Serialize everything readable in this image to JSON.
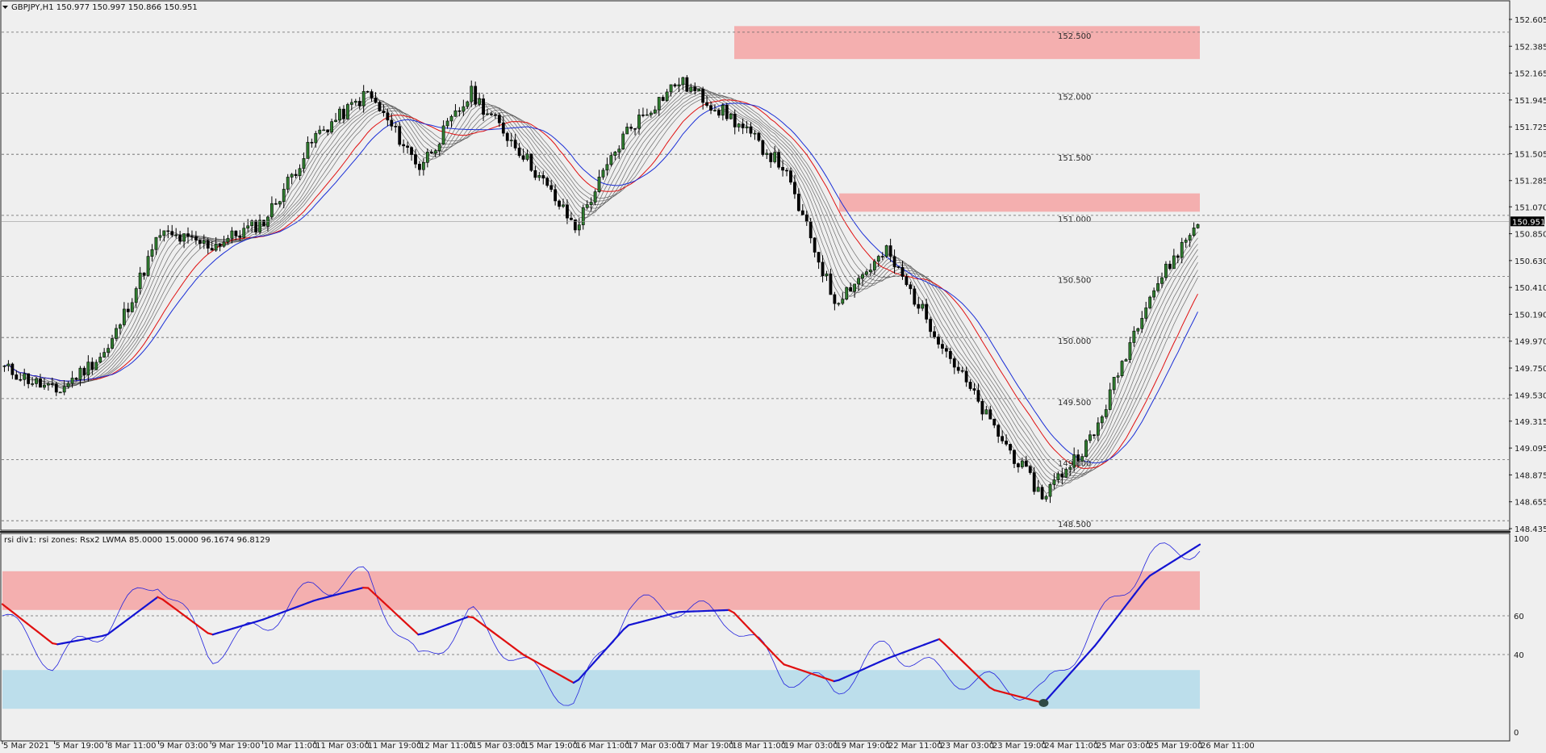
{
  "header": {
    "title": "GBPJPY,H1  150.977 150.997 150.866 150.951",
    "menu_icon": "triangle-down-icon"
  },
  "price_panel": {
    "current_price": "150.951",
    "price_axis_labels": [
      "152.605",
      "152.385",
      "152.165",
      "151.945",
      "151.725",
      "151.505",
      "151.285",
      "151.070",
      "150.850",
      "150.630",
      "150.410",
      "150.190",
      "149.970",
      "149.750",
      "149.530",
      "149.315",
      "149.095",
      "148.875",
      "148.655",
      "148.435"
    ],
    "level_labels": [
      "152.500",
      "152.000",
      "151.500",
      "151.000",
      "150.500",
      "150.000",
      "149.500",
      "149.000",
      "148.500"
    ],
    "zone_colors": {
      "supply": "#f4afaf"
    }
  },
  "indicator_panel": {
    "title": "rsi div1: rsi zones: Rsx2 LWMA 85.0000 15.0000 96.1674 96.8129",
    "axis_labels": [
      "100",
      "60",
      "40",
      "0"
    ],
    "zone_colors": {
      "overbought": "#f4afaf",
      "oversold": "#bcdeeb"
    }
  },
  "time_axis": {
    "labels": [
      "5 Mar 2021",
      "5 Mar 19:00",
      "8 Mar 11:00",
      "9 Mar 03:00",
      "9 Mar 19:00",
      "10 Mar 11:00",
      "11 Mar 03:00",
      "11 Mar 19:00",
      "12 Mar 11:00",
      "15 Mar 03:00",
      "15 Mar 19:00",
      "16 Mar 11:00",
      "17 Mar 03:00",
      "17 Mar 19:00",
      "18 Mar 11:00",
      "19 Mar 03:00",
      "19 Mar 19:00",
      "22 Mar 11:00",
      "23 Mar 03:00",
      "23 Mar 19:00",
      "24 Mar 11:00",
      "25 Mar 03:00",
      "25 Mar 19:00",
      "26 Mar 11:00"
    ]
  },
  "chart_data": [
    {
      "type": "candlestick",
      "symbol": "GBPJPY",
      "timeframe": "H1",
      "ohlc_header": {
        "open": 150.977,
        "high": 150.997,
        "low": 150.866,
        "close": 150.951
      },
      "y_range": [
        148.435,
        152.605
      ],
      "horizontal_levels": [
        152.5,
        152.0,
        151.5,
        151.0,
        150.5,
        150.0,
        149.5,
        149.0,
        148.5
      ],
      "zones": [
        {
          "kind": "supply",
          "from": 152.28,
          "to": 152.55
        },
        {
          "kind": "supply",
          "from": 151.03,
          "to": 151.18
        }
      ],
      "close_path_approx": [
        {
          "t": "5 Mar 2021",
          "v": 149.75
        },
        {
          "t": "5 Mar 19:00",
          "v": 149.55
        },
        {
          "t": "8 Mar 11:00",
          "v": 149.9
        },
        {
          "t": "9 Mar 03:00",
          "v": 150.85
        },
        {
          "t": "9 Mar 19:00",
          "v": 150.75
        },
        {
          "t": "10 Mar 11:00",
          "v": 150.95
        },
        {
          "t": "11 Mar 03:00",
          "v": 151.65
        },
        {
          "t": "11 Mar 19:00",
          "v": 152.0
        },
        {
          "t": "12 Mar 11:00",
          "v": 151.4
        },
        {
          "t": "15 Mar 03:00",
          "v": 152.0
        },
        {
          "t": "15 Mar 19:00",
          "v": 151.5
        },
        {
          "t": "16 Mar 11:00",
          "v": 150.9
        },
        {
          "t": "17 Mar 03:00",
          "v": 151.7
        },
        {
          "t": "17 Mar 19:00",
          "v": 152.1
        },
        {
          "t": "18 Mar 11:00",
          "v": 151.8
        },
        {
          "t": "19 Mar 03:00",
          "v": 151.4
        },
        {
          "t": "19 Mar 19:00",
          "v": 150.3
        },
        {
          "t": "22 Mar 11:00",
          "v": 150.7
        },
        {
          "t": "23 Mar 03:00",
          "v": 150.0
        },
        {
          "t": "23 Mar 19:00",
          "v": 149.3
        },
        {
          "t": "24 Mar 11:00",
          "v": 148.7
        },
        {
          "t": "25 Mar 03:00",
          "v": 149.2
        },
        {
          "t": "25 Mar 19:00",
          "v": 150.3
        },
        {
          "t": "26 Mar 11:00",
          "v": 150.95
        }
      ],
      "series": [
        {
          "name": "",
          "kind": "moving-average",
          "color": "#e01010"
        },
        {
          "name": "",
          "kind": "moving-average",
          "color": "#1a2ed6"
        },
        {
          "name": "",
          "kind": "moving-average-ribbon",
          "color": "#555555"
        }
      ]
    },
    {
      "type": "line",
      "y_range": [
        0,
        100
      ],
      "levels": [
        60,
        40
      ],
      "zones": [
        {
          "kind": "overbought",
          "from": 63,
          "to": 83
        },
        {
          "kind": "oversold",
          "from": 12,
          "to": 32
        }
      ],
      "values_approx": [
        {
          "t": "5 Mar 2021",
          "slow": 66,
          "fast": 60
        },
        {
          "t": "5 Mar 19:00",
          "slow": 45,
          "fast": 35
        },
        {
          "t": "8 Mar 11:00",
          "slow": 50,
          "fast": 55
        },
        {
          "t": "9 Mar 03:00",
          "slow": 70,
          "fast": 80
        },
        {
          "t": "9 Mar 19:00",
          "slow": 50,
          "fast": 40
        },
        {
          "t": "10 Mar 11:00",
          "slow": 58,
          "fast": 55
        },
        {
          "t": "11 Mar 03:00",
          "slow": 68,
          "fast": 75
        },
        {
          "t": "11 Mar 19:00",
          "slow": 75,
          "fast": 80
        },
        {
          "t": "12 Mar 11:00",
          "slow": 50,
          "fast": 35
        },
        {
          "t": "15 Mar 03:00",
          "slow": 60,
          "fast": 60
        },
        {
          "t": "15 Mar 19:00",
          "slow": 40,
          "fast": 35
        },
        {
          "t": "16 Mar 11:00",
          "slow": 25,
          "fast": 15
        },
        {
          "t": "17 Mar 03:00",
          "slow": 55,
          "fast": 65
        },
        {
          "t": "17 Mar 19:00",
          "slow": 62,
          "fast": 65
        },
        {
          "t": "18 Mar 11:00",
          "slow": 63,
          "fast": 58
        },
        {
          "t": "19 Mar 03:00",
          "slow": 35,
          "fast": 30
        },
        {
          "t": "19 Mar 19:00",
          "slow": 26,
          "fast": 22
        },
        {
          "t": "22 Mar 11:00",
          "slow": 38,
          "fast": 45
        },
        {
          "t": "23 Mar 03:00",
          "slow": 48,
          "fast": 30
        },
        {
          "t": "23 Mar 19:00",
          "slow": 22,
          "fast": 25
        },
        {
          "t": "24 Mar 11:00",
          "slow": 15,
          "fast": 20
        },
        {
          "t": "25 Mar 03:00",
          "slow": 45,
          "fast": 55
        },
        {
          "t": "25 Mar 19:00",
          "slow": 80,
          "fast": 90
        },
        {
          "t": "26 Mar 11:00",
          "slow": 96.8,
          "fast": 96.2
        }
      ],
      "series": [
        {
          "name": "",
          "kind": "slow-line-up",
          "color": "#1414d2"
        },
        {
          "name": "",
          "kind": "slow-line-down",
          "color": "#e01010"
        },
        {
          "name": "",
          "kind": "fast-line",
          "color": "#2222dd"
        }
      ],
      "marker": {
        "t": "24 Mar 11:00",
        "v": 15,
        "color": "#2f4a44"
      }
    }
  ]
}
